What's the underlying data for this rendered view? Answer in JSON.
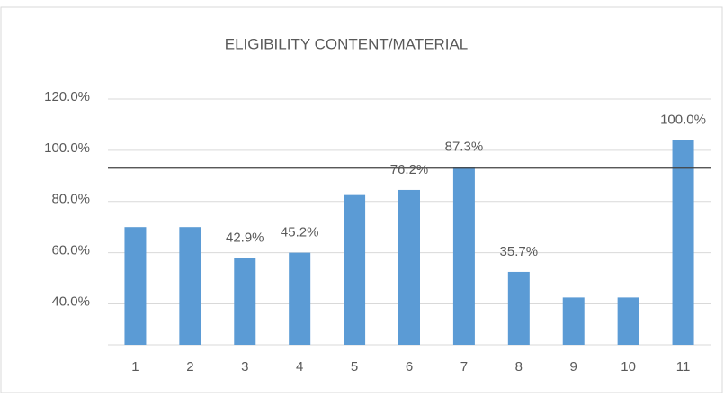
{
  "chart_data": {
    "type": "bar",
    "title": "ELIGIBILITY CONTENT/MATERIAL",
    "categories": [
      "1",
      "2",
      "3",
      "4",
      "5",
      "6",
      "7",
      "8",
      "9",
      "10",
      "11"
    ],
    "values": [
      70,
      70,
      58,
      60,
      82.5,
      84.5,
      93.5,
      52.5,
      42.5,
      42.5,
      104
    ],
    "color": "#5b9bd5",
    "annotations": [
      {
        "text": "42.9%",
        "category": "3"
      },
      {
        "text": "45.2%",
        "category": "4"
      },
      {
        "text": "76.2%",
        "category": "6"
      },
      {
        "text": "87.3%",
        "category": "7"
      },
      {
        "text": "35.7%",
        "category": "8"
      },
      {
        "text": "100.0%",
        "category": "11"
      }
    ],
    "reference_line": 93,
    "ylim": [
      24,
      120
    ],
    "yticks": [
      {
        "value": 40,
        "label": "40.0%"
      },
      {
        "value": 60,
        "label": "60.0%"
      },
      {
        "value": 80,
        "label": "80.0%"
      },
      {
        "value": 100,
        "label": "100.0%"
      },
      {
        "value": 120,
        "label": "120.0%"
      }
    ],
    "grid": true
  }
}
